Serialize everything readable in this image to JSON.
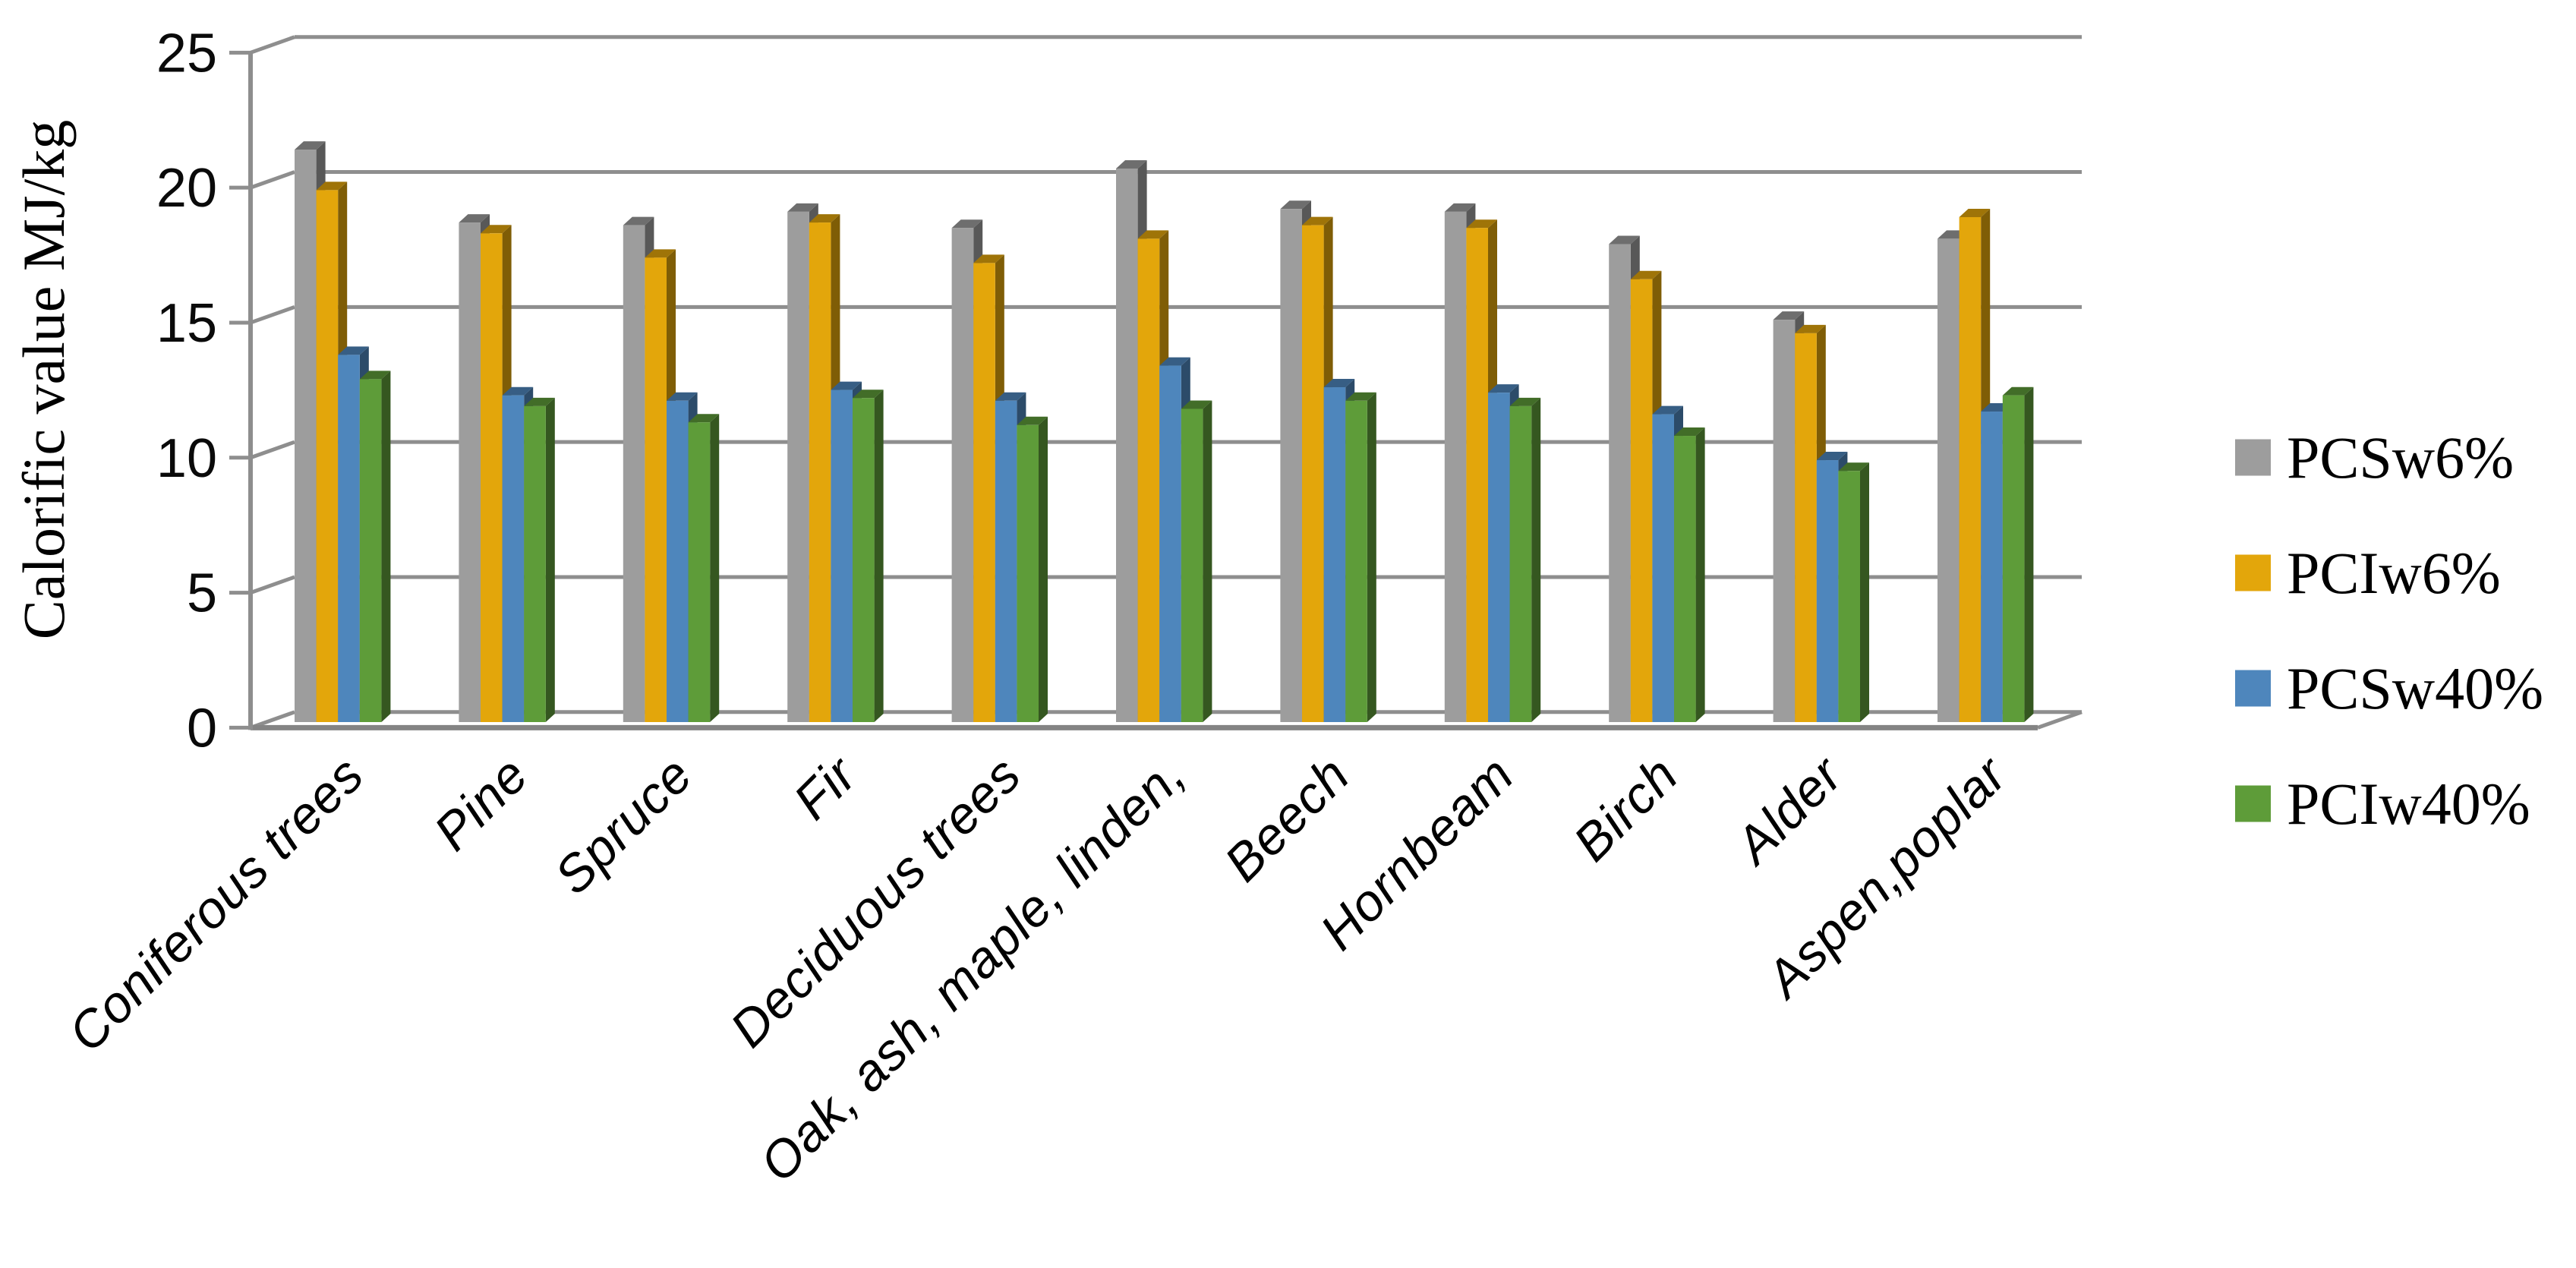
{
  "chart_data": {
    "type": "bar",
    "style": "3d-clustered-column",
    "title": "",
    "ylabel": "Calorific value MJ/kg",
    "xlabel": "",
    "ylim": [
      0,
      25
    ],
    "yticks": [
      0,
      5,
      10,
      15,
      20,
      25
    ],
    "grid": true,
    "legend_position": "right",
    "background": "#ffffff",
    "axis_color": "#8E8E8E",
    "text_color": "#000000",
    "categories": [
      "Coniferous trees",
      "Pine",
      "Spruce",
      "Fir",
      "Deciduous trees",
      "Oak, ash, maple, linden,",
      "Beech",
      "Hornbeam",
      "Birch",
      "Alder",
      "Aspen,poplar"
    ],
    "series": [
      {
        "name": "PCSw6%",
        "color": "#9D9D9D",
        "values": [
          21.2,
          18.5,
          18.4,
          18.9,
          18.3,
          20.5,
          19.0,
          18.9,
          17.7,
          14.9,
          17.9
        ]
      },
      {
        "name": "PCIw6%",
        "color": "#E3A60B",
        "values": [
          19.7,
          18.1,
          17.2,
          18.5,
          17.0,
          17.9,
          18.4,
          18.3,
          16.4,
          14.4,
          18.7
        ]
      },
      {
        "name": "PCSw40%",
        "color": "#4E86BC",
        "values": [
          13.6,
          12.1,
          11.9,
          12.3,
          11.9,
          13.2,
          12.4,
          12.2,
          11.4,
          9.7,
          11.5
        ]
      },
      {
        "name": "PCIw40%",
        "color": "#5E9C39",
        "values": [
          12.7,
          11.7,
          11.1,
          12.0,
          11.0,
          11.6,
          11.9,
          11.7,
          10.6,
          9.3,
          12.1
        ]
      }
    ],
    "units": "MJ/kg"
  }
}
